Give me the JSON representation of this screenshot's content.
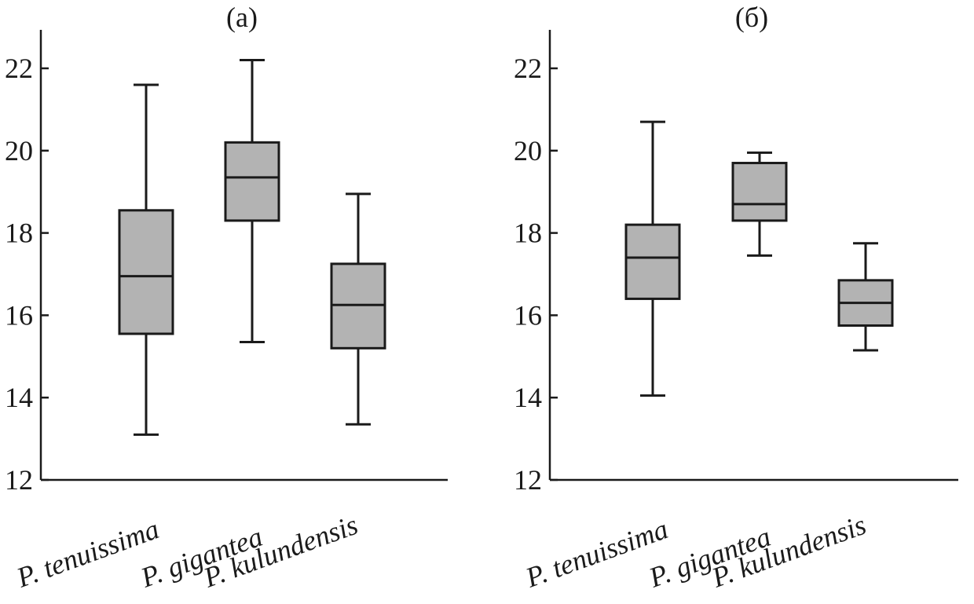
{
  "style": {
    "box_fill": "#b3b3b3",
    "ink": "#1a1a1a"
  },
  "chart_data": [
    {
      "type": "box",
      "title": "(a)",
      "categories": [
        "P. tenuissima",
        "P. gigantea",
        "P. kulundensis"
      ],
      "ylim": [
        12,
        23
      ],
      "yticks": [
        12,
        14,
        16,
        18,
        20,
        22
      ],
      "grid": false,
      "boxes": [
        {
          "min": 13.1,
          "q1": 15.55,
          "median": 16.95,
          "q3": 18.55,
          "max": 21.6
        },
        {
          "min": 15.35,
          "q1": 18.3,
          "median": 19.35,
          "q3": 20.2,
          "max": 22.2
        },
        {
          "min": 13.35,
          "q1": 15.2,
          "median": 16.25,
          "q3": 17.25,
          "max": 18.95
        }
      ]
    },
    {
      "type": "box",
      "title": "(б)",
      "categories": [
        "P. tenuissima",
        "P. gigantea",
        "P. kulundensis"
      ],
      "ylim": [
        12,
        23
      ],
      "yticks": [
        12,
        14,
        16,
        18,
        20,
        22
      ],
      "grid": false,
      "boxes": [
        {
          "min": 14.05,
          "q1": 16.4,
          "median": 17.4,
          "q3": 18.2,
          "max": 20.7
        },
        {
          "min": 17.45,
          "q1": 18.3,
          "median": 18.7,
          "q3": 19.7,
          "max": 19.95
        },
        {
          "min": 15.15,
          "q1": 15.75,
          "median": 16.3,
          "q3": 16.85,
          "max": 17.75
        }
      ]
    }
  ]
}
